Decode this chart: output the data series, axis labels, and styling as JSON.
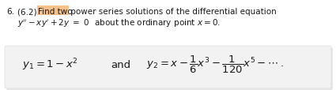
{
  "fig_width": 4.25,
  "fig_height": 1.15,
  "dpi": 100,
  "background_color": "#ffffff",
  "box_facecolor": "#f2f2f2",
  "box_edgecolor": "#dddddd",
  "highlight_color": "#f5c18a",
  "text_color": "#1a1a1a",
  "font_size_problem": 7.5,
  "font_size_solution": 9.5,
  "line1_number": "6.",
  "line1_prefix": "  (6.2) ",
  "line1_highlighted": "Find two",
  "line1_suffix": " power series solutions of the differential equation",
  "line2": "y″ − xy′ +2y  =  0  about the ordinary point x = 0.",
  "sol_y1": "$y_1 = 1 - x^2$",
  "sol_and": "and",
  "sol_y2": "$y_2 = x - \\dfrac{1}{6}x^3 - \\dfrac{1}{120}x^5 - \\cdots\\,.$"
}
